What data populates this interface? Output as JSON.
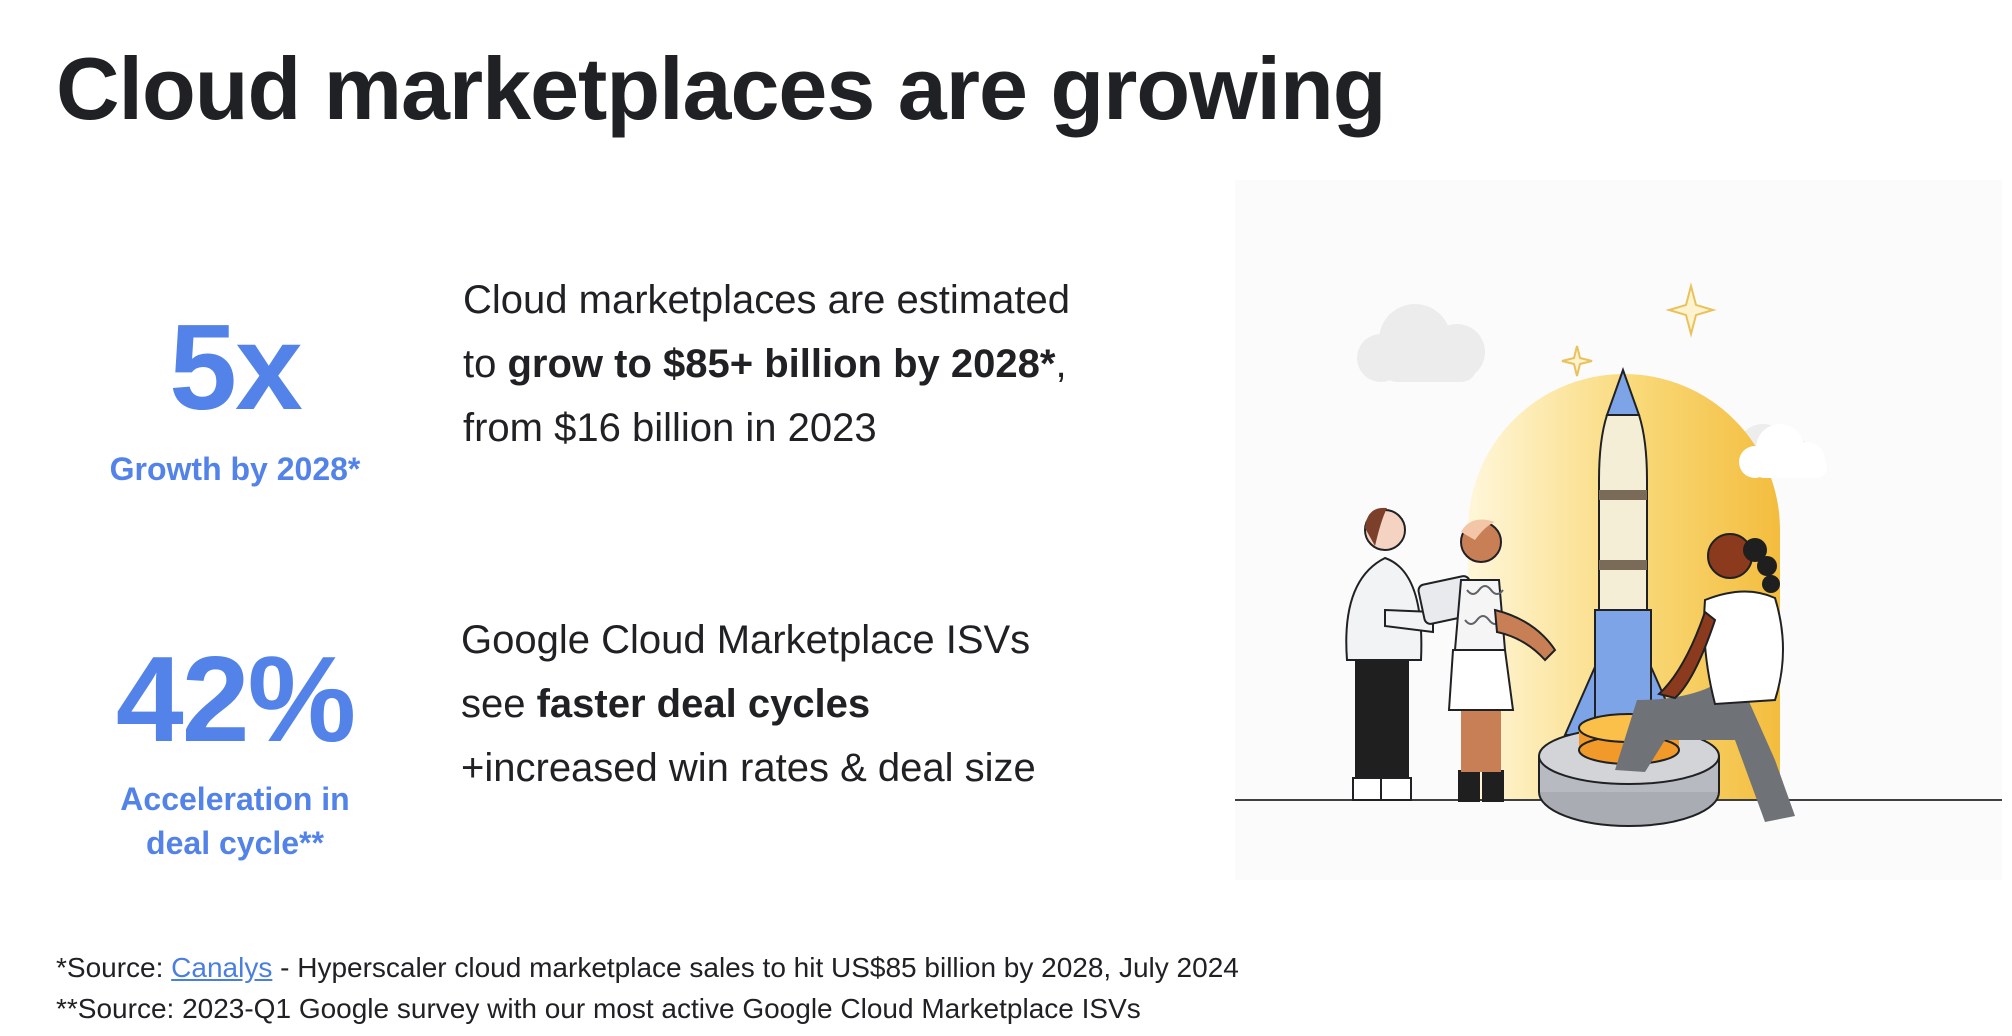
{
  "title": "Cloud marketplaces are growing",
  "stats": [
    {
      "value": "5x",
      "label": "Growth by 2028*",
      "description": {
        "pre": "Cloud marketplaces are estimated to ",
        "bold": "grow to $85+ billion by 2028*",
        "post": ", from $16 billion in 2023"
      }
    },
    {
      "value": "42%",
      "label_lines": [
        "Acceleration in",
        "deal cycle**"
      ],
      "description": {
        "pre": "Google Cloud Marketplace ISVs see ",
        "bold": "faster deal cycles",
        "post": "+increased win rates & deal size"
      }
    }
  ],
  "sources": [
    {
      "prefix": "*Source: ",
      "link_text": "Canalys",
      "suffix": " - Hyperscaler cloud marketplace sales to hit US$85 billion by 2028, July 2024"
    },
    {
      "text": "**Source: 2023-Q1 Google survey with our most active Google Cloud Marketplace ISVs"
    }
  ],
  "colors": {
    "accent": "#5383e8",
    "text": "#202124",
    "link": "#4a7fe0",
    "sun": "#f5c244"
  },
  "illustration": "rocket-launch-team-illustration"
}
